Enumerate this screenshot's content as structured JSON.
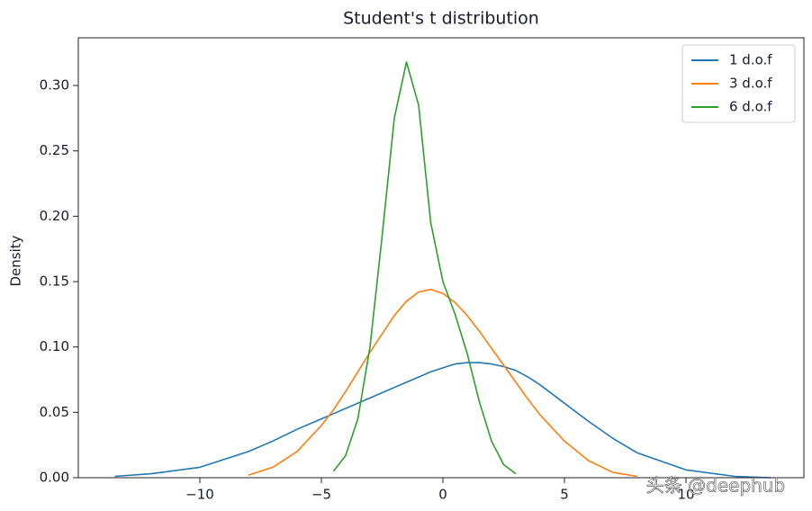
{
  "chart_data": {
    "type": "line",
    "title": "Student's t distribution",
    "y_label": "Density",
    "x": [
      -13.5,
      -12,
      -10,
      -8,
      -7,
      -6,
      -5,
      -4.5,
      -4,
      -3.5,
      -3,
      -2.5,
      -2,
      -1.5,
      -1,
      -0.5,
      0,
      0.5,
      1,
      1.5,
      2,
      2.5,
      3,
      3.5,
      4,
      5,
      6,
      7,
      8,
      10,
      12,
      13.5
    ],
    "series": [
      {
        "name": "1 d.o.f",
        "color": "#1f77b4",
        "values": [
          0.001,
          0.003,
          0.008,
          0.02,
          0.028,
          0.037,
          0.045,
          0.049,
          0.053,
          0.057,
          0.061,
          0.065,
          0.069,
          0.073,
          0.077,
          0.081,
          0.084,
          0.087,
          0.088,
          0.088,
          0.087,
          0.085,
          0.082,
          0.077,
          0.071,
          0.057,
          0.043,
          0.03,
          0.019,
          0.006,
          0.001,
          0.0
        ]
      },
      {
        "name": "3 d.o.f",
        "color": "#ff7f0e",
        "values": [
          null,
          null,
          null,
          0.002,
          0.008,
          0.02,
          0.04,
          0.052,
          0.066,
          0.081,
          0.096,
          0.11,
          0.124,
          0.135,
          0.142,
          0.144,
          0.141,
          0.134,
          0.124,
          0.112,
          0.099,
          0.086,
          0.073,
          0.06,
          0.048,
          0.028,
          0.013,
          0.004,
          0.001,
          null,
          null,
          null
        ]
      },
      {
        "name": "6 d.o.f",
        "color": "#2ca02c",
        "values": [
          null,
          null,
          null,
          null,
          null,
          null,
          null,
          0.005,
          0.017,
          0.045,
          0.1,
          0.185,
          0.275,
          0.318,
          0.285,
          0.195,
          0.15,
          0.125,
          0.095,
          0.058,
          0.028,
          0.01,
          0.003,
          null,
          null,
          null,
          null,
          null,
          null,
          null,
          null,
          null
        ]
      }
    ],
    "xlim": [
      -15,
      14.85
    ],
    "ylim": [
      0,
      0.3365
    ],
    "xticks": [
      {
        "value": -10,
        "label": "−10"
      },
      {
        "value": -5,
        "label": "−5"
      },
      0,
      5,
      10
    ],
    "yticks": [
      {
        "value": 0,
        "label": "0.00"
      },
      {
        "value": 0.05,
        "label": "0.05"
      },
      {
        "value": 0.1,
        "label": "0.10"
      },
      {
        "value": 0.15,
        "label": "0.15"
      },
      {
        "value": 0.2,
        "label": "0.20"
      },
      {
        "value": 0.25,
        "label": "0.25"
      },
      {
        "value": 0.3,
        "label": "0.30"
      }
    ],
    "legend": "upper right",
    "grid": false
  },
  "watermark": "头条 @deephub"
}
